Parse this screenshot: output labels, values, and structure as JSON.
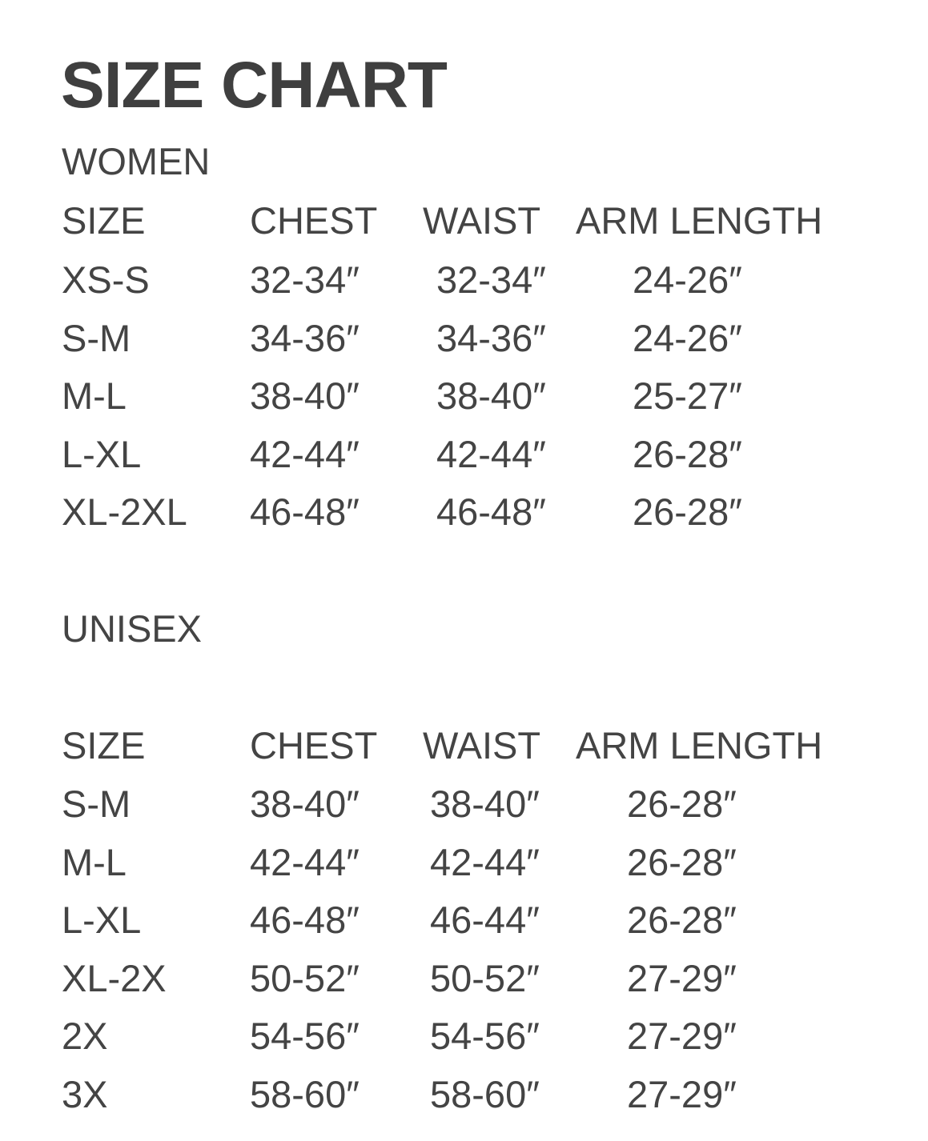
{
  "title": "SIZE CHART",
  "women": {
    "label": "WOMEN",
    "headers": [
      "SIZE",
      "CHEST",
      "WAIST",
      "ARM LENGTH"
    ],
    "rows": [
      [
        "XS-S",
        "32-34″",
        "32-34″",
        "24-26″"
      ],
      [
        "S-M",
        "34-36″",
        "34-36″",
        "24-26″"
      ],
      [
        "M-L",
        "38-40″",
        "38-40″",
        "25-27″"
      ],
      [
        "L-XL",
        "42-44″",
        "42-44″",
        "26-28″"
      ],
      [
        "XL-2XL",
        "46-48″",
        "46-48″",
        "26-28″"
      ]
    ]
  },
  "unisex": {
    "label": "UNISEX",
    "headers": [
      "SIZE",
      "CHEST",
      "WAIST",
      "ARM LENGTH"
    ],
    "rows": [
      [
        "S-M",
        "38-40″",
        "38-40″",
        "26-28″"
      ],
      [
        "M-L",
        "42-44″",
        "42-44″",
        "26-28″"
      ],
      [
        "L-XL",
        "46-48″",
        "46-44″",
        "26-28″"
      ],
      [
        "XL-2X",
        "50-52″",
        "50-52″",
        "27-29″"
      ],
      [
        "2X",
        "54-56″",
        "54-56″",
        "27-29″"
      ],
      [
        "3X",
        "58-60″",
        "58-60″",
        "27-29″"
      ]
    ]
  }
}
